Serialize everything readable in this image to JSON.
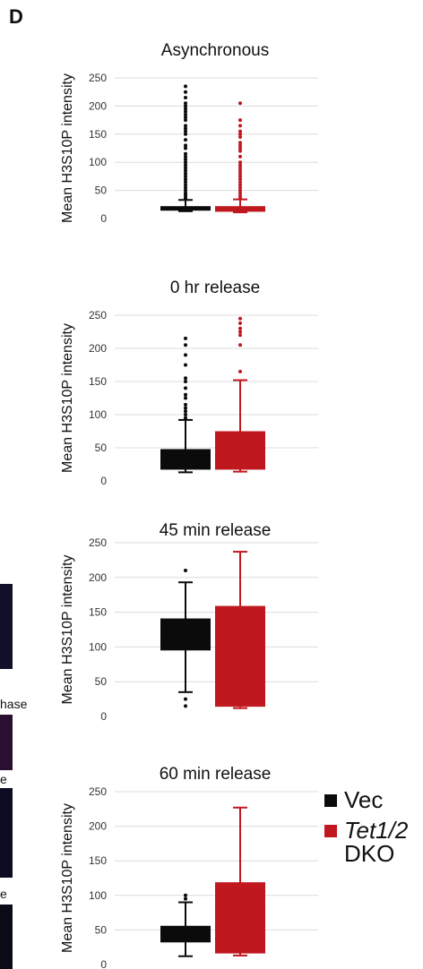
{
  "panel_letter": "D",
  "left_fragments": [
    "hase",
    "e",
    "e"
  ],
  "legend": [
    {
      "label_line1": "Vec",
      "label_line2": "",
      "italic_part": "",
      "color": "#0b0b0b"
    },
    {
      "label_line1": "Tet1/2",
      "label_line2": "DKO",
      "italic_part": "Tet1/2",
      "color": "#c0181f"
    }
  ],
  "chart_data": [
    {
      "type": "box",
      "title": "Asynchronous",
      "ylabel": "Mean H3S10P intensity",
      "ylim": [
        0,
        250
      ],
      "yticks": [
        0,
        50,
        100,
        150,
        200,
        250
      ],
      "grid": true,
      "series": [
        {
          "name": "Vec",
          "color": "#0b0b0b",
          "whisker_low": 13,
          "q1": 14,
          "median": 17,
          "q3": 22,
          "whisker_high": 33,
          "outliers": [
            35,
            38,
            42,
            45,
            50,
            55,
            60,
            65,
            70,
            75,
            80,
            85,
            90,
            95,
            100,
            105,
            110,
            115,
            125,
            130,
            140,
            150,
            155,
            160,
            165,
            175,
            180,
            185,
            190,
            195,
            200,
            205,
            215,
            225,
            235
          ]
        },
        {
          "name": "Tet1/2 DKO",
          "color": "#c0181f",
          "whisker_low": 11,
          "q1": 12,
          "median": 15,
          "q3": 22,
          "whisker_high": 34,
          "outliers": [
            36,
            40,
            45,
            50,
            55,
            60,
            65,
            70,
            75,
            80,
            85,
            90,
            95,
            100,
            110,
            120,
            125,
            130,
            135,
            145,
            150,
            155,
            165,
            175,
            205
          ]
        }
      ]
    },
    {
      "type": "box",
      "title": "0 hr release",
      "ylabel": "Mean H3S10P intensity",
      "ylim": [
        0,
        250
      ],
      "yticks": [
        0,
        50,
        100,
        150,
        200,
        250
      ],
      "grid": true,
      "series": [
        {
          "name": "Vec",
          "color": "#0b0b0b",
          "whisker_low": 13,
          "q1": 17,
          "median": 25,
          "q3": 48,
          "whisker_high": 92,
          "outliers": [
            95,
            100,
            105,
            110,
            115,
            125,
            130,
            140,
            150,
            155,
            175,
            190,
            205,
            215
          ]
        },
        {
          "name": "Tet1/2 DKO",
          "color": "#c0181f",
          "whisker_low": 14,
          "q1": 17,
          "median": 35,
          "q3": 75,
          "whisker_high": 152,
          "outliers": [
            165,
            205,
            220,
            225,
            230,
            238,
            245
          ]
        }
      ]
    },
    {
      "type": "box",
      "title": "45 min release",
      "ylabel": "Mean H3S10P intensity",
      "ylim": [
        0,
        250
      ],
      "yticks": [
        0,
        50,
        100,
        150,
        200,
        250
      ],
      "grid": true,
      "series": [
        {
          "name": "Vec",
          "color": "#0b0b0b",
          "whisker_low": 35,
          "q1": 95,
          "median": 115,
          "q3": 141,
          "whisker_high": 193,
          "outliers": [
            15,
            25,
            210
          ]
        },
        {
          "name": "Tet1/2 DKO",
          "color": "#c0181f",
          "whisker_low": 12,
          "q1": 14,
          "median": 60,
          "q3": 159,
          "whisker_high": 237,
          "outliers": []
        }
      ]
    },
    {
      "type": "box",
      "title": "60 min release",
      "ylabel": "Mean H3S10P intensity",
      "ylim": [
        0,
        250
      ],
      "yticks": [
        0,
        50,
        100,
        150,
        200,
        250
      ],
      "grid": true,
      "series": [
        {
          "name": "Vec",
          "color": "#0b0b0b",
          "whisker_low": 12,
          "q1": 32,
          "median": 42,
          "q3": 56,
          "whisker_high": 90,
          "outliers": [
            95,
            100
          ]
        },
        {
          "name": "Tet1/2 DKO",
          "color": "#c0181f",
          "whisker_low": 13,
          "q1": 16,
          "median": 50,
          "q3": 119,
          "whisker_high": 227,
          "outliers": []
        }
      ]
    }
  ]
}
